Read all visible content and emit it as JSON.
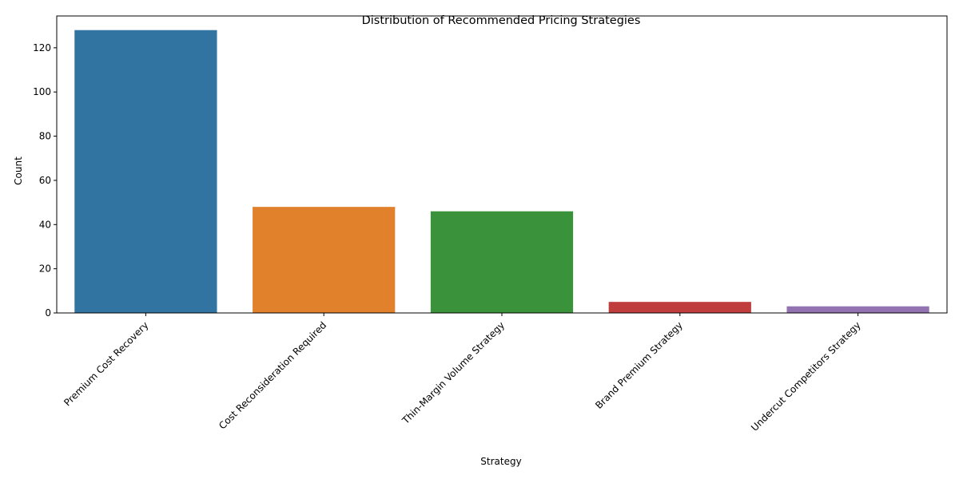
{
  "chart_data": {
    "type": "bar",
    "title": "Distribution of Recommended Pricing Strategies",
    "xlabel": "Strategy",
    "ylabel": "Count",
    "categories": [
      "Premium Cost Recovery",
      "Cost Reconsideration Required",
      "Thin-Margin Volume Strategy",
      "Brand Premium Strategy",
      "Undercut Competitors Strategy"
    ],
    "values": [
      128,
      48,
      46,
      5,
      3
    ],
    "colors": [
      "#3274a1",
      "#e1812c",
      "#3a923a",
      "#c03d3e",
      "#9372b2"
    ],
    "ylim": [
      0,
      134.4
    ],
    "yticks": [
      0,
      20,
      40,
      60,
      80,
      100,
      120
    ],
    "grid": false
  }
}
